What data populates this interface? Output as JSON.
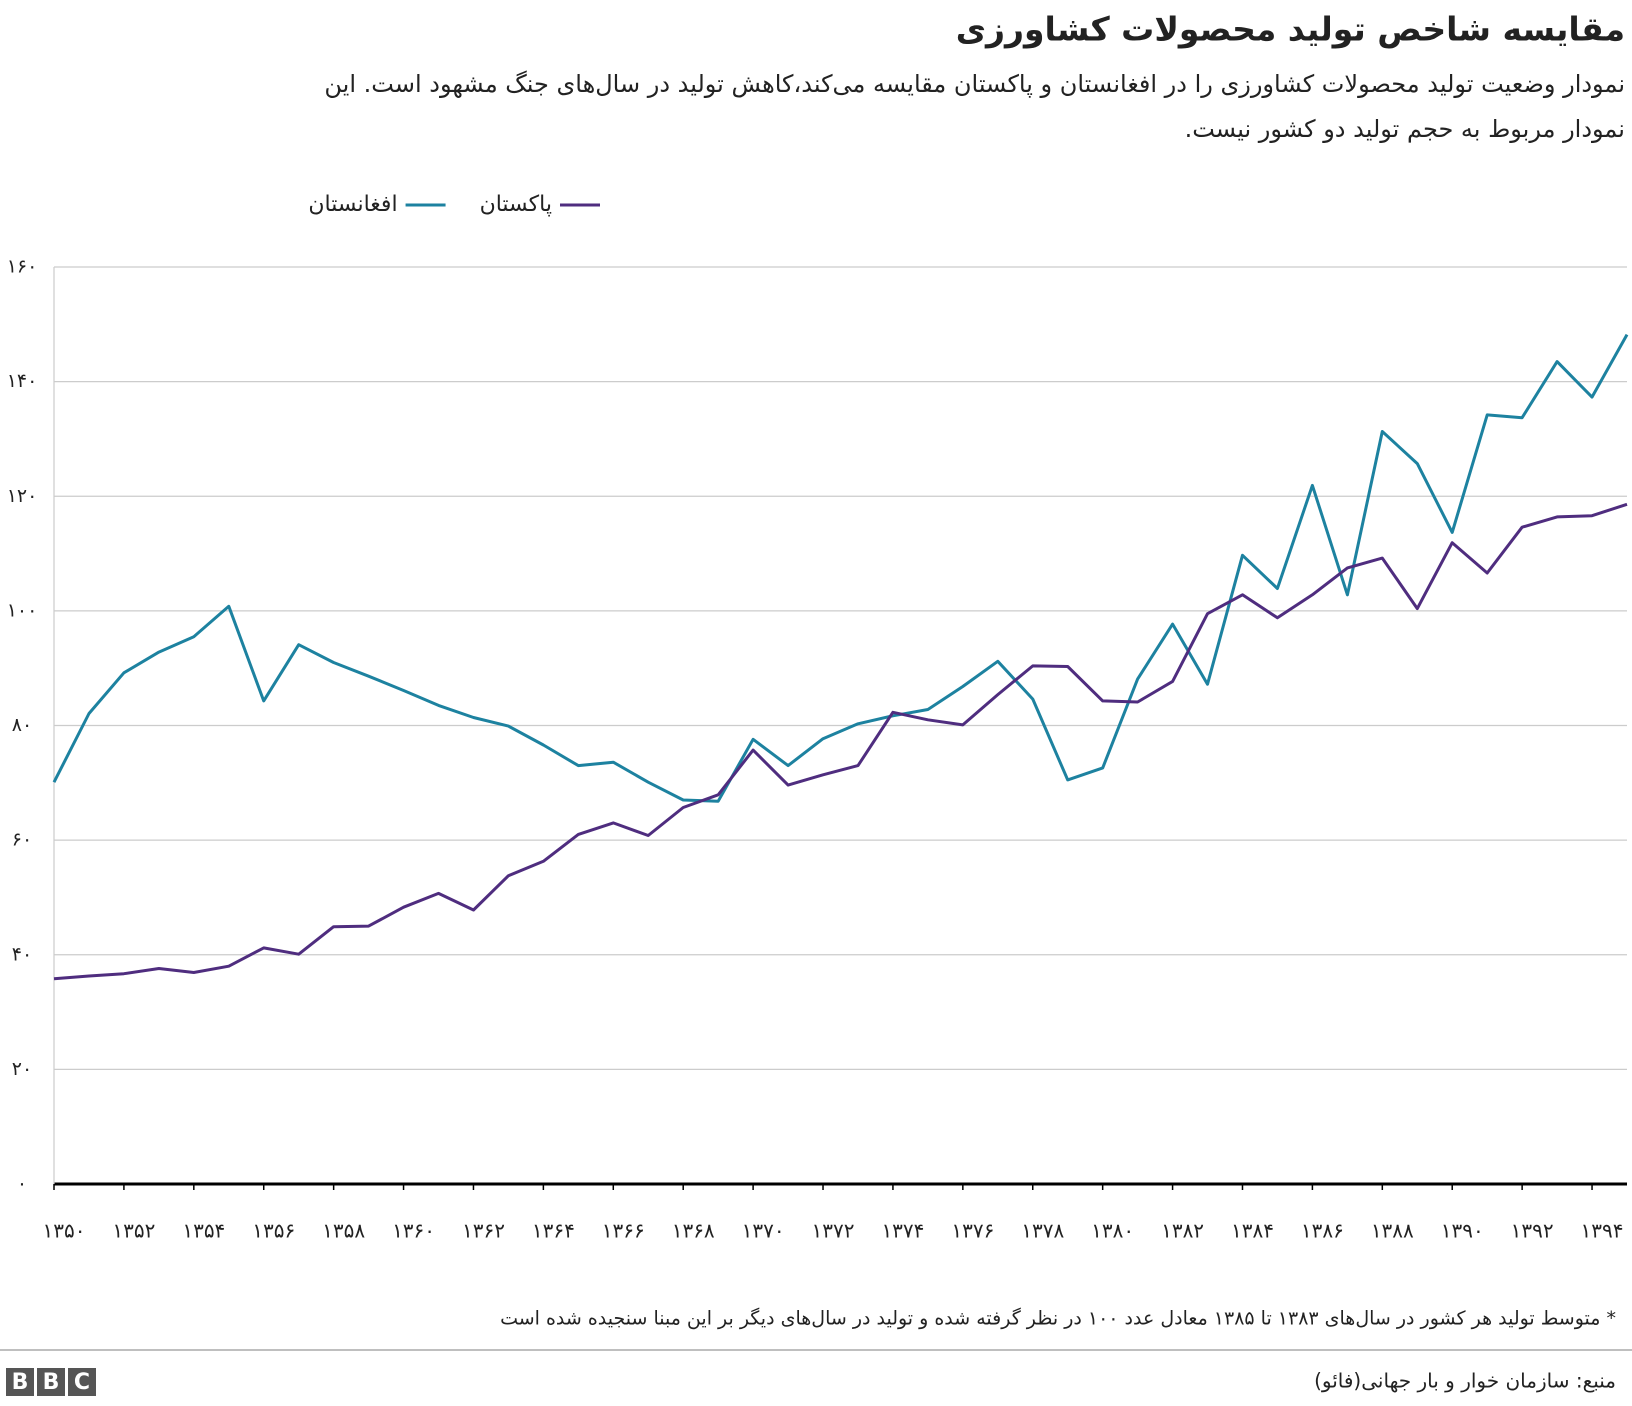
{
  "chart_data": {
    "type": "line",
    "title": "مقایسه شاخص تولید محصولات کشاورزی",
    "subtitle": [
      "نمودار وضعیت تولید محصولات کشاورزی را در افغانستان و پاکستان مقایسه می‌کند،کاهش تولید در سال‌های جنگ مشهود است. این",
      "نمودار مربوط به حجم تولید دو کشور نیست."
    ],
    "x": [
      1350,
      1351,
      1352,
      1353,
      1354,
      1355,
      1356,
      1357,
      1358,
      1359,
      1360,
      1361,
      1362,
      1363,
      1364,
      1365,
      1366,
      1367,
      1368,
      1369,
      1370,
      1371,
      1372,
      1373,
      1374,
      1375,
      1376,
      1377,
      1378,
      1379,
      1380,
      1381,
      1382,
      1383,
      1384,
      1385,
      1386,
      1387,
      1388,
      1389,
      1390,
      1391,
      1392,
      1393,
      1394,
      1395
    ],
    "series": [
      {
        "name": "پاکستان",
        "color": "#4f2d7f",
        "values": [
          35.8,
          36.3,
          36.7,
          37.6,
          36.9,
          38.0,
          41.2,
          40.1,
          44.9,
          45.0,
          48.3,
          50.7,
          47.8,
          53.8,
          56.3,
          61.0,
          63.0,
          60.8,
          65.7,
          67.9,
          75.7,
          69.6,
          71.4,
          73.0,
          82.3,
          81.0,
          80.1,
          85.4,
          90.4,
          90.3,
          84.3,
          84.1,
          87.7,
          99.5,
          102.8,
          98.8,
          102.8,
          107.5,
          109.2,
          100.4,
          111.9,
          106.6,
          114.6,
          116.4,
          116.6,
          118.6
        ]
      },
      {
        "name": "افغانستان",
        "color": "#1d82a0",
        "values": [
          70.1,
          82.1,
          89.2,
          92.8,
          95.5,
          100.8,
          84.3,
          94.1,
          91.0,
          88.6,
          86.1,
          83.5,
          81.4,
          79.9,
          76.6,
          73.0,
          73.6,
          70.1,
          67.0,
          66.8,
          77.6,
          73.0,
          77.7,
          80.3,
          81.7,
          82.8,
          86.8,
          91.2,
          84.6,
          70.5,
          72.6,
          88.1,
          97.7,
          87.2,
          109.7,
          103.9,
          121.9,
          102.8,
          131.3,
          125.7,
          113.7,
          134.2,
          133.7,
          143.5,
          137.3,
          148.2
        ]
      }
    ],
    "xlim": [
      1350,
      1395
    ],
    "xticks": [
      {
        "value": 1350,
        "label": "۱۳۵۰"
      },
      {
        "value": 1352,
        "label": "۱۳۵۲"
      },
      {
        "value": 1354,
        "label": "۱۳۵۴"
      },
      {
        "value": 1356,
        "label": "۱۳۵۶"
      },
      {
        "value": 1358,
        "label": "۱۳۵۸"
      },
      {
        "value": 1360,
        "label": "۱۳۶۰"
      },
      {
        "value": 1362,
        "label": "۱۳۶۲"
      },
      {
        "value": 1364,
        "label": "۱۳۶۴"
      },
      {
        "value": 1366,
        "label": "۱۳۶۶"
      },
      {
        "value": 1368,
        "label": "۱۳۶۸"
      },
      {
        "value": 1370,
        "label": "۱۳۷۰"
      },
      {
        "value": 1372,
        "label": "۱۳۷۲"
      },
      {
        "value": 1374,
        "label": "۱۳۷۴"
      },
      {
        "value": 1376,
        "label": "۱۳۷۶"
      },
      {
        "value": 1378,
        "label": "۱۳۷۸"
      },
      {
        "value": 1380,
        "label": "۱۳۸۰"
      },
      {
        "value": 1382,
        "label": "۱۳۸۲"
      },
      {
        "value": 1384,
        "label": "۱۳۸۴"
      },
      {
        "value": 1386,
        "label": "۱۳۸۶"
      },
      {
        "value": 1388,
        "label": "۱۳۸۸"
      },
      {
        "value": 1390,
        "label": "۱۳۹۰"
      },
      {
        "value": 1392,
        "label": "۱۳۹۲"
      },
      {
        "value": 1394,
        "label": "۱۳۹۴"
      }
    ],
    "ylim": [
      0,
      160
    ],
    "yticks": [
      {
        "value": 0,
        "label": "۰"
      },
      {
        "value": 20,
        "label": "۲۰"
      },
      {
        "value": 40,
        "label": "۴۰"
      },
      {
        "value": 60,
        "label": "۶۰"
      },
      {
        "value": 80,
        "label": "۸۰"
      },
      {
        "value": 100,
        "label": "۱۰۰"
      },
      {
        "value": 120,
        "label": "۱۲۰"
      },
      {
        "value": 140,
        "label": "۱۴۰"
      },
      {
        "value": 160,
        "label": "۱۶۰"
      }
    ],
    "grid": true,
    "footnote": "* متوسط تولید هر کشور در سال‌های ۱۳۸۳ تا ۱۳۸۵ معادل عدد ۱۰۰ در نظر گرفته شده و تولید در سال‌های دیگر بر این مبنا سنجیده شده است",
    "source": "منبع: سازمان خوار و بار جهانی(فائو)",
    "logo": [
      "B",
      "B",
      "C"
    ]
  }
}
